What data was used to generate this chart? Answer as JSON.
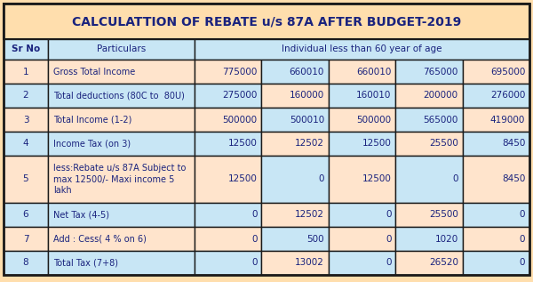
{
  "title": "CALCULATTION OF REBATE u/s 87A AFTER BUDGET-2019",
  "rows": [
    {
      "sr": "1",
      "particulars": "Gross Total Income",
      "values": [
        "775000",
        "660010",
        "660010",
        "765000",
        "695000"
      ]
    },
    {
      "sr": "2",
      "particulars": "Total deductions (80C to  80U)",
      "values": [
        "275000",
        "160000",
        "160010",
        "200000",
        "276000"
      ]
    },
    {
      "sr": "3",
      "particulars": "Total Income (1-2)",
      "values": [
        "500000",
        "500010",
        "500000",
        "565000",
        "419000"
      ]
    },
    {
      "sr": "4",
      "particulars": "Income Tax (on 3)",
      "values": [
        "12500",
        "12502",
        "12500",
        "25500",
        "8450"
      ]
    },
    {
      "sr": "5",
      "particulars": "less:Rebate u/s 87A Subject to\nmax 12500/- Maxi income 5\nlakh",
      "values": [
        "12500",
        "0",
        "12500",
        "0",
        "8450"
      ]
    },
    {
      "sr": "6",
      "particulars": "Net Tax (4-5)",
      "values": [
        "0",
        "12502",
        "0",
        "25500",
        "0"
      ]
    },
    {
      "sr": "7",
      "particulars": "Add : Cess( 4 % on 6)",
      "values": [
        "0",
        "500",
        "0",
        "1020",
        "0"
      ]
    },
    {
      "sr": "8",
      "particulars": "Total Tax (7+8)",
      "values": [
        "0",
        "13002",
        "0",
        "26520",
        "0"
      ]
    }
  ],
  "bg_outer": "#FFDEAD",
  "bg_title": "#FFDEAD",
  "bg_header": "#C8E6F5",
  "bg_peach": "#FFE4CC",
  "bg_blue": "#C8E6F5",
  "border_color": "#1a1a1a",
  "text_color": "#1A237E",
  "title_color": "#1A237E"
}
